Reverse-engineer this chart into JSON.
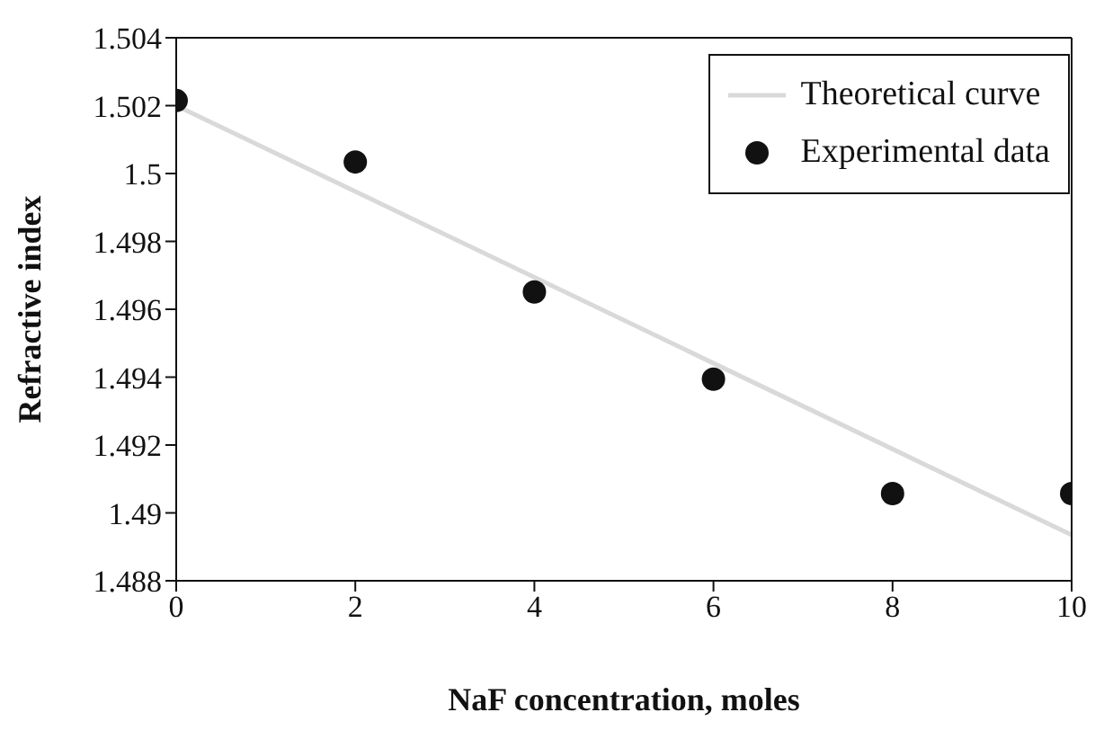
{
  "chart_data": {
    "type": "scatter",
    "xlabel": "NaF concentration, moles",
    "ylabel": "Refractive index",
    "xlim": [
      0,
      10
    ],
    "xticks": [
      0,
      2,
      4,
      6,
      8,
      10
    ],
    "ylim": [
      1.488,
      1.504
    ],
    "yticks": [
      1.488,
      1.49,
      1.492,
      1.494,
      1.496,
      1.498,
      1.5,
      1.502,
      1.504
    ],
    "grid": false,
    "legend": "top right",
    "marker": "circle",
    "series": [
      {
        "name": "Theoretical curve",
        "type": "line",
        "color": "#d9d9d9",
        "x": [
          0,
          10
        ],
        "values": [
          1.502,
          1.48935
        ],
        "line_style": "solid",
        "marker": "none"
      },
      {
        "name": "Experimental data",
        "color": "#111111",
        "x": [
          0,
          2,
          4,
          6,
          8,
          10
        ],
        "values": [
          1.50215,
          1.50034,
          1.49651,
          1.49394,
          1.49057,
          1.49057
        ]
      }
    ]
  }
}
